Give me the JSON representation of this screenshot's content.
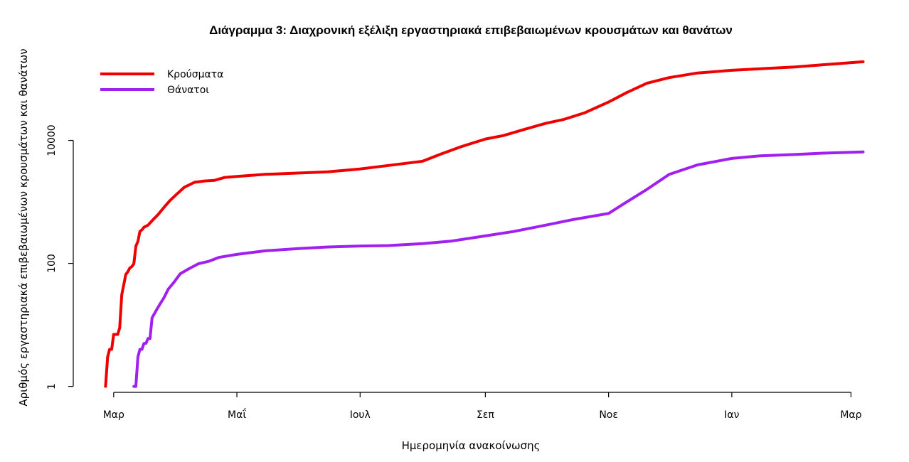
{
  "chart_data": {
    "type": "line",
    "title": "Διάγραμμα 3: Διαχρονική εξέλιξη εργαστηριακά επιβεβαιωμένων κρουσμάτων και θανάτων",
    "xlabel": "Ημερομηνία ανακοίνωσης",
    "ylabel": "Αριθμός εργαστηριακά επιβεβαιωμένων κρουσμάτων και θανάτων",
    "y_scale": "log",
    "ylim": [
      0.8,
      200000
    ],
    "y_ticks": [
      1,
      100,
      10000
    ],
    "x_ticks": [
      "Μαρ",
      "Μαΐ",
      "Ιουλ",
      "Σεπ",
      "Νοε",
      "Ιαν",
      "Μαρ"
    ],
    "xlim": [
      "2020-02-10",
      "2021-03-10"
    ],
    "x_tick_dates": [
      "2020-03-01",
      "2020-05-01",
      "2020-07-01",
      "2020-09-01",
      "2020-11-01",
      "2021-01-01",
      "2021-03-01"
    ],
    "legend_position": "top-left",
    "grid": false,
    "series": [
      {
        "name": "Κρούσματα",
        "color": "#ee0000",
        "points": [
          [
            "2020-02-26",
            1
          ],
          [
            "2020-02-27",
            3
          ],
          [
            "2020-02-28",
            4
          ],
          [
            "2020-02-29",
            4
          ],
          [
            "2020-03-01",
            7
          ],
          [
            "2020-03-02",
            7
          ],
          [
            "2020-03-03",
            7
          ],
          [
            "2020-03-04",
            9
          ],
          [
            "2020-03-05",
            31
          ],
          [
            "2020-03-06",
            45
          ],
          [
            "2020-03-07",
            66
          ],
          [
            "2020-03-08",
            73
          ],
          [
            "2020-03-09",
            84
          ],
          [
            "2020-03-10",
            89
          ],
          [
            "2020-03-11",
            99
          ],
          [
            "2020-03-12",
            190
          ],
          [
            "2020-03-13",
            228
          ],
          [
            "2020-03-14",
            331
          ],
          [
            "2020-03-15",
            352
          ],
          [
            "2020-03-16",
            387
          ],
          [
            "2020-03-18",
            418
          ],
          [
            "2020-03-20",
            495
          ],
          [
            "2020-03-23",
            624
          ],
          [
            "2020-03-26",
            821
          ],
          [
            "2020-03-29",
            1061
          ],
          [
            "2020-04-01",
            1314
          ],
          [
            "2020-04-05",
            1735
          ],
          [
            "2020-04-10",
            2081
          ],
          [
            "2020-04-15",
            2192
          ],
          [
            "2020-04-20",
            2245
          ],
          [
            "2020-04-25",
            2506
          ],
          [
            "2020-05-01",
            2591
          ],
          [
            "2020-05-15",
            2810
          ],
          [
            "2020-06-01",
            2952
          ],
          [
            "2020-06-15",
            3088
          ],
          [
            "2020-07-01",
            3432
          ],
          [
            "2020-07-15",
            3910
          ],
          [
            "2020-08-01",
            4587
          ],
          [
            "2020-08-10",
            6000
          ],
          [
            "2020-08-20",
            7900
          ],
          [
            "2020-09-01",
            10524
          ],
          [
            "2020-09-10",
            12000
          ],
          [
            "2020-09-20",
            15000
          ],
          [
            "2020-10-01",
            19000
          ],
          [
            "2020-10-10",
            22000
          ],
          [
            "2020-10-20",
            28000
          ],
          [
            "2020-11-01",
            42000
          ],
          [
            "2020-11-10",
            60000
          ],
          [
            "2020-11-20",
            85000
          ],
          [
            "2020-12-01",
            105000
          ],
          [
            "2020-12-15",
            125000
          ],
          [
            "2021-01-01",
            138000
          ],
          [
            "2021-01-15",
            146000
          ],
          [
            "2021-02-01",
            156000
          ],
          [
            "2021-02-15",
            170000
          ],
          [
            "2021-03-07",
            190000
          ]
        ]
      },
      {
        "name": "Θάνατοι",
        "color": "#a020f0",
        "points": [
          [
            "2020-03-11",
            1
          ],
          [
            "2020-03-12",
            1
          ],
          [
            "2020-03-13",
            3
          ],
          [
            "2020-03-14",
            4
          ],
          [
            "2020-03-15",
            4
          ],
          [
            "2020-03-16",
            5
          ],
          [
            "2020-03-17",
            5
          ],
          [
            "2020-03-18",
            6
          ],
          [
            "2020-03-19",
            6
          ],
          [
            "2020-03-20",
            13
          ],
          [
            "2020-03-22",
            17
          ],
          [
            "2020-03-24",
            22
          ],
          [
            "2020-03-26",
            28
          ],
          [
            "2020-03-28",
            38
          ],
          [
            "2020-03-31",
            50
          ],
          [
            "2020-04-03",
            68
          ],
          [
            "2020-04-07",
            81
          ],
          [
            "2020-04-12",
            99
          ],
          [
            "2020-04-17",
            108
          ],
          [
            "2020-04-22",
            125
          ],
          [
            "2020-05-01",
            140
          ],
          [
            "2020-05-15",
            160
          ],
          [
            "2020-06-01",
            175
          ],
          [
            "2020-06-15",
            185
          ],
          [
            "2020-07-01",
            192
          ],
          [
            "2020-07-15",
            195
          ],
          [
            "2020-08-01",
            210
          ],
          [
            "2020-08-15",
            230
          ],
          [
            "2020-09-01",
            280
          ],
          [
            "2020-09-15",
            330
          ],
          [
            "2020-10-01",
            420
          ],
          [
            "2020-10-15",
            520
          ],
          [
            "2020-11-01",
            650
          ],
          [
            "2020-11-10",
            1000
          ],
          [
            "2020-11-20",
            1600
          ],
          [
            "2020-12-01",
            2800
          ],
          [
            "2020-12-15",
            4000
          ],
          [
            "2021-01-01",
            5100
          ],
          [
            "2021-01-15",
            5600
          ],
          [
            "2021-02-01",
            5900
          ],
          [
            "2021-02-15",
            6200
          ],
          [
            "2021-03-07",
            6500
          ]
        ]
      }
    ]
  }
}
